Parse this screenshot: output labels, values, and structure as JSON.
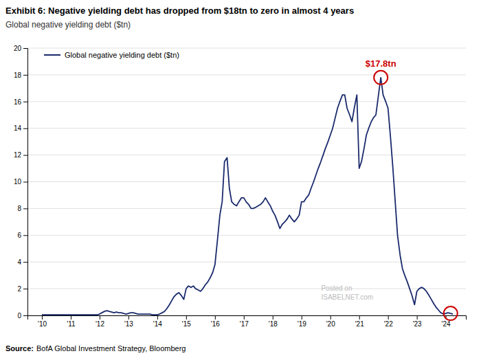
{
  "chart_data": {
    "type": "line",
    "title": "Exhibit 6: Negative yielding debt has dropped from $18tn to zero in almost 4 years",
    "subtitle": "Global negative yielding debt ($tn)",
    "source_label": "Source:",
    "source": "BofA Global Investment Strategy, Bloomberg",
    "watermark": [
      "Posted on",
      "ISABELNET.com"
    ],
    "grid": true,
    "legend": "upper left",
    "xlim": [
      2009.5,
      2024.7
    ],
    "xticks": [
      {
        "value": 2010,
        "label": "'10"
      },
      {
        "value": 2011,
        "label": "'11"
      },
      {
        "value": 2012,
        "label": "'12"
      },
      {
        "value": 2013,
        "label": "'13"
      },
      {
        "value": 2014,
        "label": "'14"
      },
      {
        "value": 2015,
        "label": "'15"
      },
      {
        "value": 2016,
        "label": "'16"
      },
      {
        "value": 2017,
        "label": "'17"
      },
      {
        "value": 2018,
        "label": "'18"
      },
      {
        "value": 2019,
        "label": "'19"
      },
      {
        "value": 2020,
        "label": "'20"
      },
      {
        "value": 2021,
        "label": "'21"
      },
      {
        "value": 2022,
        "label": "'22"
      },
      {
        "value": 2023,
        "label": "'23"
      },
      {
        "value": 2024,
        "label": "'24"
      }
    ],
    "ylim": [
      0,
      20
    ],
    "yticks": [
      0,
      2,
      4,
      6,
      8,
      10,
      12,
      14,
      16,
      18,
      20
    ],
    "x": [
      2010.0,
      2010.08,
      2010.17,
      2010.25,
      2010.33,
      2010.42,
      2010.5,
      2010.58,
      2010.67,
      2010.75,
      2010.83,
      2010.92,
      2011.0,
      2011.08,
      2011.17,
      2011.25,
      2011.33,
      2011.42,
      2011.5,
      2011.58,
      2011.67,
      2011.75,
      2011.83,
      2011.92,
      2012.0,
      2012.08,
      2012.17,
      2012.25,
      2012.33,
      2012.42,
      2012.5,
      2012.58,
      2012.67,
      2012.75,
      2012.83,
      2012.92,
      2013.0,
      2013.08,
      2013.17,
      2013.25,
      2013.33,
      2013.42,
      2013.5,
      2013.58,
      2013.67,
      2013.75,
      2013.83,
      2013.92,
      2014.0,
      2014.08,
      2014.17,
      2014.25,
      2014.33,
      2014.42,
      2014.5,
      2014.58,
      2014.67,
      2014.75,
      2014.83,
      2014.92,
      2015.0,
      2015.08,
      2015.17,
      2015.25,
      2015.33,
      2015.42,
      2015.5,
      2015.58,
      2015.67,
      2015.75,
      2015.83,
      2015.92,
      2016.0,
      2016.08,
      2016.17,
      2016.25,
      2016.33,
      2016.42,
      2016.5,
      2016.58,
      2016.67,
      2016.75,
      2016.83,
      2016.92,
      2017.0,
      2017.08,
      2017.17,
      2017.25,
      2017.33,
      2017.42,
      2017.5,
      2017.58,
      2017.67,
      2017.75,
      2017.83,
      2017.92,
      2018.0,
      2018.08,
      2018.17,
      2018.25,
      2018.33,
      2018.42,
      2018.5,
      2018.58,
      2018.67,
      2018.75,
      2018.83,
      2018.92,
      2019.0,
      2019.08,
      2019.17,
      2019.25,
      2019.33,
      2019.42,
      2019.5,
      2019.58,
      2019.67,
      2019.75,
      2019.83,
      2019.92,
      2020.0,
      2020.08,
      2020.17,
      2020.25,
      2020.33,
      2020.42,
      2020.5,
      2020.58,
      2020.67,
      2020.75,
      2020.83,
      2020.92,
      2021.0,
      2021.08,
      2021.17,
      2021.25,
      2021.33,
      2021.42,
      2021.5,
      2021.58,
      2021.67,
      2021.75,
      2021.83,
      2021.92,
      2022.0,
      2022.08,
      2022.17,
      2022.25,
      2022.33,
      2022.42,
      2022.5,
      2022.58,
      2022.67,
      2022.75,
      2022.83,
      2022.92,
      2023.0,
      2023.08,
      2023.17,
      2023.25,
      2023.33,
      2023.42,
      2023.5,
      2023.58,
      2023.67,
      2023.75,
      2023.83,
      2023.92,
      2024.0,
      2024.08,
      2024.17,
      2024.25
    ],
    "series": [
      {
        "name": "Global negative yielding debt ($tn)",
        "color": "#1a2a6c",
        "values": [
          0.05,
          0.05,
          0.05,
          0.05,
          0.05,
          0.05,
          0.05,
          0.05,
          0.05,
          0.05,
          0.05,
          0.05,
          0.05,
          0.05,
          0.05,
          0.05,
          0.05,
          0.05,
          0.05,
          0.05,
          0.05,
          0.05,
          0.05,
          0.05,
          0.1,
          0.2,
          0.3,
          0.35,
          0.3,
          0.25,
          0.2,
          0.25,
          0.2,
          0.2,
          0.15,
          0.1,
          0.15,
          0.2,
          0.2,
          0.15,
          0.1,
          0.1,
          0.1,
          0.1,
          0.1,
          0.1,
          0.05,
          0.05,
          0.05,
          0.1,
          0.2,
          0.3,
          0.5,
          0.8,
          1.1,
          1.4,
          1.6,
          1.7,
          1.5,
          1.2,
          2.0,
          2.2,
          2.1,
          2.2,
          2.0,
          1.9,
          1.8,
          2.0,
          2.3,
          2.5,
          2.8,
          3.2,
          3.8,
          5.5,
          7.5,
          8.5,
          11.5,
          11.8,
          9.5,
          8.5,
          8.3,
          8.2,
          8.5,
          8.8,
          8.8,
          8.5,
          8.3,
          8.0,
          8.0,
          8.1,
          8.2,
          8.3,
          8.5,
          8.8,
          8.5,
          8.2,
          7.8,
          7.5,
          7.0,
          6.5,
          6.8,
          7.0,
          7.2,
          7.5,
          7.2,
          7.0,
          7.2,
          7.5,
          8.5,
          8.5,
          8.8,
          9.0,
          9.5,
          10.0,
          10.5,
          11.0,
          11.5,
          12.0,
          12.5,
          13.0,
          13.5,
          14.0,
          14.8,
          15.5,
          16.0,
          16.5,
          16.5,
          15.5,
          15.0,
          14.5,
          15.5,
          16.5,
          11.0,
          11.5,
          12.5,
          13.5,
          14.0,
          14.5,
          14.8,
          15.0,
          16.5,
          17.8,
          16.5,
          16.0,
          15.5,
          13.5,
          11.0,
          8.5,
          6.0,
          4.5,
          3.5,
          3.0,
          2.5,
          2.0,
          1.5,
          0.8,
          1.8,
          2.0,
          2.1,
          2.0,
          1.8,
          1.5,
          1.2,
          0.9,
          0.6,
          0.4,
          0.2,
          0.1,
          0.15,
          0.2,
          0.15,
          0.1
        ]
      }
    ],
    "annotations": [
      {
        "text": "$17.8tn",
        "x": 2021.75,
        "y": 17.8,
        "color": "#cc0000"
      }
    ],
    "highlights": [
      {
        "x": 2021.75,
        "y": 17.8,
        "color": "#cc0000"
      },
      {
        "x": 2024.17,
        "y": 0.15,
        "color": "#cc0000"
      }
    ]
  }
}
